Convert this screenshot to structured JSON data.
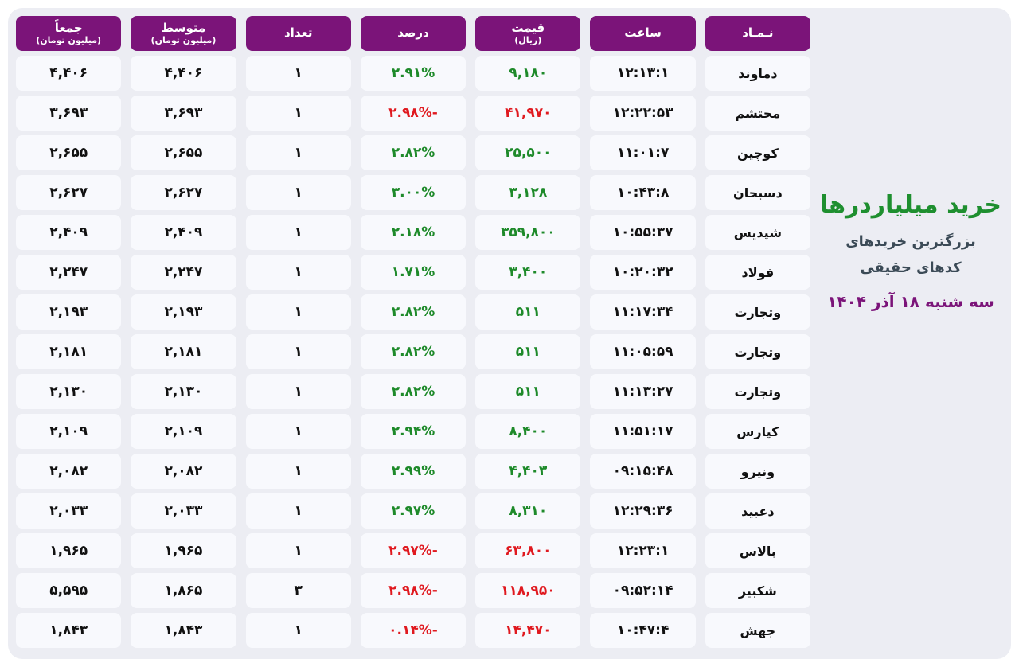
{
  "side": {
    "title": "خرید میلیاردرها",
    "subtitle_line1": "بزرگترین خریدهای",
    "subtitle_line2": "کدهای حقیقی",
    "date": "سه شنبه ۱۸ آذر ۱۴۰۴"
  },
  "columns": [
    {
      "label": "نـمـاد",
      "sub": ""
    },
    {
      "label": "ساعت",
      "sub": ""
    },
    {
      "label": "قیمت",
      "sub": "(ریال)"
    },
    {
      "label": "درصد",
      "sub": ""
    },
    {
      "label": "تعداد",
      "sub": ""
    },
    {
      "label": "متوسط",
      "sub": "(میلیون تومان)"
    },
    {
      "label": "جمعاً",
      "sub": "(میلیون تومان)"
    }
  ],
  "colors": {
    "header_bg": "#7b1479",
    "positive": "#1e8a2a",
    "negative": "#e0191f"
  },
  "rows": [
    {
      "symbol": "دماوند",
      "time": "۱۲:۱۳:۱",
      "price": "۹,۱۸۰",
      "percent": "۲.۹۱%",
      "count": "۱",
      "avg": "۴,۴۰۶",
      "total": "۴,۴۰۶",
      "trend": "pos"
    },
    {
      "symbol": "محتشم",
      "time": "۱۲:۲۲:۵۳",
      "price": "۴۱,۹۷۰",
      "percent": "-۲.۹۸%",
      "count": "۱",
      "avg": "۳,۶۹۳",
      "total": "۳,۶۹۳",
      "trend": "neg"
    },
    {
      "symbol": "کوچین",
      "time": "۱۱:۰۱:۷",
      "price": "۲۵,۵۰۰",
      "percent": "۲.۸۲%",
      "count": "۱",
      "avg": "۲,۶۵۵",
      "total": "۲,۶۵۵",
      "trend": "pos"
    },
    {
      "symbol": "دسبحان",
      "time": "۱۰:۴۳:۸",
      "price": "۳,۱۲۸",
      "percent": "۳.۰۰%",
      "count": "۱",
      "avg": "۲,۶۲۷",
      "total": "۲,۶۲۷",
      "trend": "pos"
    },
    {
      "symbol": "شپدیس",
      "time": "۱۰:۵۵:۳۷",
      "price": "۳۵۹,۸۰۰",
      "percent": "۲.۱۸%",
      "count": "۱",
      "avg": "۲,۴۰۹",
      "total": "۲,۴۰۹",
      "trend": "pos"
    },
    {
      "symbol": "فولاد",
      "time": "۱۰:۲۰:۳۲",
      "price": "۳,۴۰۰",
      "percent": "۱.۷۱%",
      "count": "۱",
      "avg": "۲,۲۴۷",
      "total": "۲,۲۴۷",
      "trend": "pos"
    },
    {
      "symbol": "وتجارت",
      "time": "۱۱:۱۷:۳۴",
      "price": "۵۱۱",
      "percent": "۲.۸۲%",
      "count": "۱",
      "avg": "۲,۱۹۳",
      "total": "۲,۱۹۳",
      "trend": "pos"
    },
    {
      "symbol": "وتجارت",
      "time": "۱۱:۰۵:۵۹",
      "price": "۵۱۱",
      "percent": "۲.۸۲%",
      "count": "۱",
      "avg": "۲,۱۸۱",
      "total": "۲,۱۸۱",
      "trend": "pos"
    },
    {
      "symbol": "وتجارت",
      "time": "۱۱:۱۳:۲۷",
      "price": "۵۱۱",
      "percent": "۲.۸۲%",
      "count": "۱",
      "avg": "۲,۱۳۰",
      "total": "۲,۱۳۰",
      "trend": "pos"
    },
    {
      "symbol": "کپارس",
      "time": "۱۱:۵۱:۱۷",
      "price": "۸,۴۰۰",
      "percent": "۲.۹۴%",
      "count": "۱",
      "avg": "۲,۱۰۹",
      "total": "۲,۱۰۹",
      "trend": "pos"
    },
    {
      "symbol": "ونیرو",
      "time": "۰۹:۱۵:۴۸",
      "price": "۴,۴۰۳",
      "percent": "۲.۹۹%",
      "count": "۱",
      "avg": "۲,۰۸۲",
      "total": "۲,۰۸۲",
      "trend": "pos"
    },
    {
      "symbol": "دعبید",
      "time": "۱۲:۲۹:۳۶",
      "price": "۸,۳۱۰",
      "percent": "۲.۹۷%",
      "count": "۱",
      "avg": "۲,۰۳۳",
      "total": "۲,۰۳۳",
      "trend": "pos"
    },
    {
      "symbol": "بالاس",
      "time": "۱۲:۲۳:۱",
      "price": "۶۳,۸۰۰",
      "percent": "-۲.۹۷%",
      "count": "۱",
      "avg": "۱,۹۶۵",
      "total": "۱,۹۶۵",
      "trend": "neg"
    },
    {
      "symbol": "شکبیر",
      "time": "۰۹:۵۲:۱۴",
      "price": "۱۱۸,۹۵۰",
      "percent": "-۲.۹۸%",
      "count": "۳",
      "avg": "۱,۸۶۵",
      "total": "۵,۵۹۵",
      "trend": "neg"
    },
    {
      "symbol": "جهش",
      "time": "۱۰:۴۷:۴",
      "price": "۱۴,۴۷۰",
      "percent": "-۰.۱۴%",
      "count": "۱",
      "avg": "۱,۸۴۳",
      "total": "۱,۸۴۳",
      "trend": "neg"
    }
  ]
}
